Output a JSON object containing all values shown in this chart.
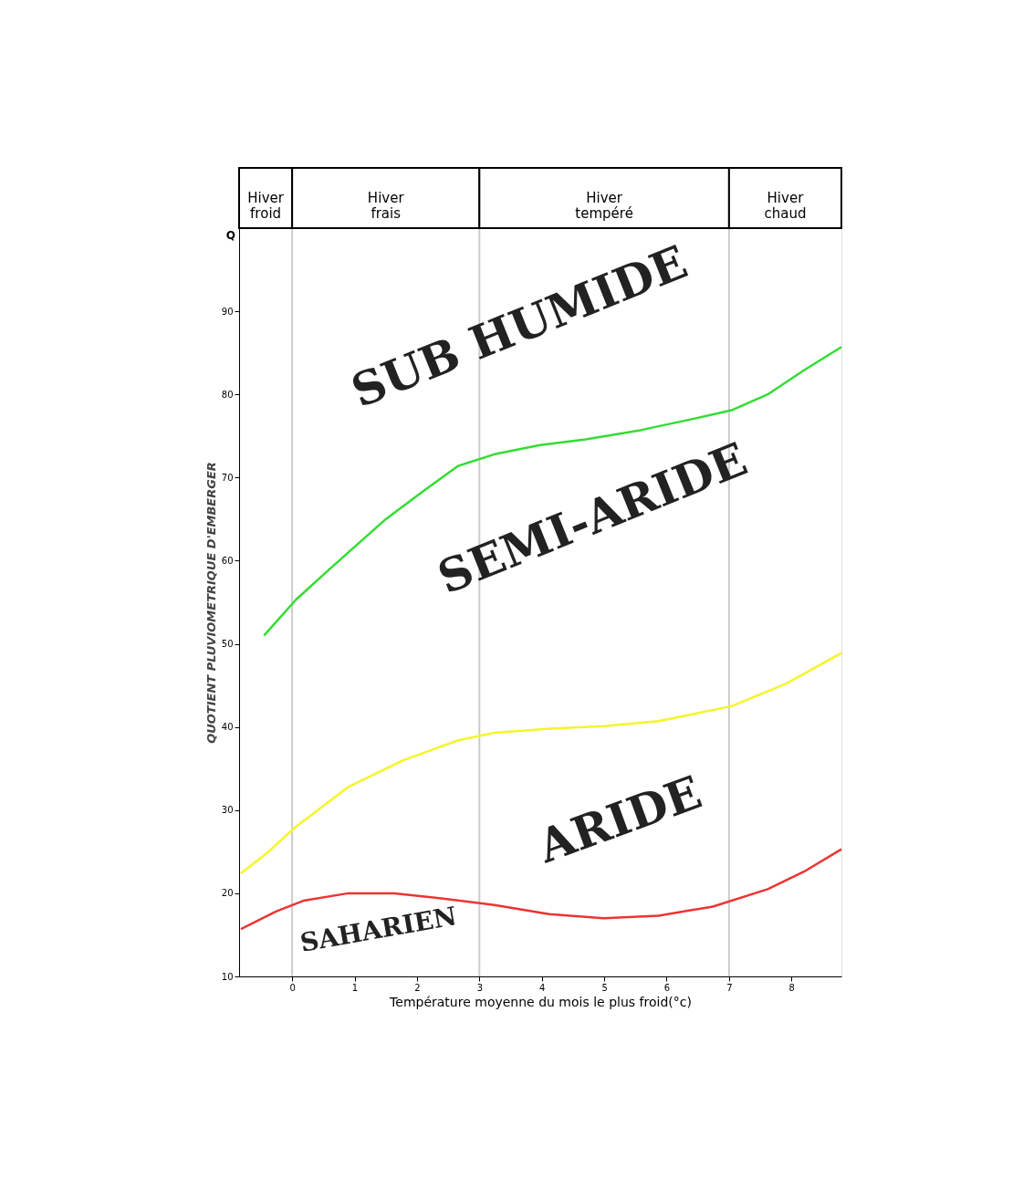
{
  "chart_data": {
    "type": "line",
    "xlabel": "Température moyenne du mois le plus froid(°c)",
    "ylabel": "QUOTIENT PLUVIOMETRIQUE D'EMBERGER",
    "xlim": [
      -0.85,
      8.8
    ],
    "ylim": [
      10,
      100
    ],
    "xticks": [
      0,
      1,
      2,
      3,
      4,
      5,
      6,
      7,
      8
    ],
    "yticks": [
      10,
      20,
      30,
      40,
      50,
      60,
      70,
      80,
      90
    ],
    "grid": false,
    "marker": "none",
    "line_style": "solid",
    "series": [
      {
        "color": "#33dd33",
        "x": [
          -0.45,
          0.06,
          0.6,
          1.5,
          2.07,
          2.66,
          3.24,
          3.97,
          4.7,
          5.58,
          6.45,
          7.04,
          7.62,
          8.2,
          8.8
        ],
        "values": [
          51,
          55.3,
          59,
          65,
          68.2,
          71.4,
          72.8,
          73.9,
          74.6,
          75.7,
          77.1,
          78.1,
          80,
          82.9,
          85.7
        ]
      },
      {
        "color": "#f5f52a",
        "x": [
          -0.82,
          -0.41,
          0.06,
          0.9,
          1.78,
          2.66,
          3.24,
          4.12,
          4.99,
          5.87,
          7.04,
          7.91,
          8.8
        ],
        "values": [
          22.4,
          24.8,
          28,
          32.8,
          36,
          38.4,
          39.3,
          39.8,
          40.1,
          40.7,
          42.5,
          45.2,
          48.9
        ]
      },
      {
        "color": "#ee3333",
        "x": [
          -0.82,
          -0.26,
          0.18,
          0.9,
          1.64,
          2.36,
          3.24,
          4.12,
          4.99,
          5.87,
          6.74,
          7.62,
          8.2,
          8.8
        ],
        "values": [
          15.7,
          17.8,
          19.1,
          20,
          20,
          19.4,
          18.6,
          17.5,
          17,
          17.3,
          18.4,
          20.5,
          22.6,
          25.3
        ]
      }
    ],
    "ref_lines": [
      {
        "axis": "x",
        "value": 0,
        "color": "#cccccc"
      },
      {
        "axis": "x",
        "value": 3,
        "color": "#cccccc"
      },
      {
        "axis": "x",
        "value": 7,
        "color": "#cccccc"
      }
    ],
    "annotations": [
      "Q",
      "Hiver froid",
      "Hiver frais",
      "Hiver tempéré",
      "Hiver chaud",
      "SUB HUMIDE",
      "SEMI-ARIDE",
      "ARIDE",
      "SAHARIEN"
    ]
  }
}
